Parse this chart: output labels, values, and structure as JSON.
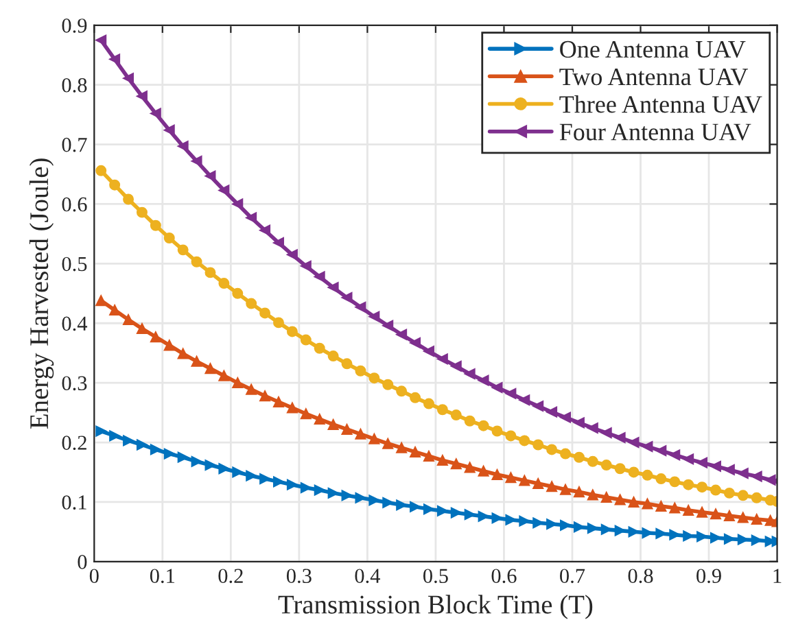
{
  "chart_data": {
    "type": "line",
    "xlabel": "Transmission Block Time (T)",
    "ylabel": "Energy Harvested (Joule)",
    "x": [
      0.01,
      0.03,
      0.05,
      0.07,
      0.09,
      0.11,
      0.13,
      0.15,
      0.17,
      0.19,
      0.21,
      0.23,
      0.25,
      0.27,
      0.29,
      0.31,
      0.33,
      0.35,
      0.37,
      0.39,
      0.41,
      0.43,
      0.45,
      0.47,
      0.49,
      0.51,
      0.53,
      0.55,
      0.57,
      0.59,
      0.61,
      0.63,
      0.65,
      0.67,
      0.69,
      0.71,
      0.73,
      0.75,
      0.77,
      0.79,
      0.81,
      0.83,
      0.85,
      0.87,
      0.89,
      0.91,
      0.93,
      0.95,
      0.97,
      0.99,
      1.0
    ],
    "series": [
      {
        "name": "One Antenna UAV",
        "color": "#0072bd",
        "marker": "triangle-right",
        "values": [
          0.219,
          0.211,
          0.203,
          0.196,
          0.188,
          0.181,
          0.175,
          0.168,
          0.162,
          0.156,
          0.15,
          0.144,
          0.139,
          0.134,
          0.129,
          0.124,
          0.12,
          0.115,
          0.111,
          0.107,
          0.103,
          0.099,
          0.095,
          0.092,
          0.088,
          0.085,
          0.082,
          0.079,
          0.076,
          0.073,
          0.07,
          0.068,
          0.065,
          0.063,
          0.061,
          0.058,
          0.056,
          0.054,
          0.052,
          0.05,
          0.048,
          0.047,
          0.045,
          0.043,
          0.042,
          0.04,
          0.038,
          0.037,
          0.036,
          0.034,
          0.034
        ]
      },
      {
        "name": "Two Antenna UAV",
        "color": "#d95319",
        "marker": "triangle",
        "values": [
          0.438,
          0.422,
          0.406,
          0.391,
          0.377,
          0.363,
          0.349,
          0.336,
          0.324,
          0.312,
          0.3,
          0.289,
          0.278,
          0.268,
          0.258,
          0.248,
          0.239,
          0.23,
          0.222,
          0.214,
          0.206,
          0.198,
          0.191,
          0.184,
          0.177,
          0.17,
          0.164,
          0.158,
          0.152,
          0.146,
          0.141,
          0.136,
          0.131,
          0.126,
          0.121,
          0.117,
          0.112,
          0.108,
          0.104,
          0.1,
          0.097,
          0.093,
          0.09,
          0.086,
          0.083,
          0.08,
          0.077,
          0.074,
          0.071,
          0.069,
          0.067
        ]
      },
      {
        "name": "Three Antenna UAV",
        "color": "#edb120",
        "marker": "circle",
        "values": [
          0.656,
          0.632,
          0.608,
          0.586,
          0.564,
          0.543,
          0.523,
          0.503,
          0.485,
          0.467,
          0.45,
          0.433,
          0.417,
          0.401,
          0.386,
          0.372,
          0.358,
          0.345,
          0.332,
          0.32,
          0.308,
          0.297,
          0.286,
          0.275,
          0.265,
          0.255,
          0.246,
          0.236,
          0.228,
          0.219,
          0.211,
          0.203,
          0.196,
          0.188,
          0.181,
          0.175,
          0.168,
          0.162,
          0.156,
          0.15,
          0.145,
          0.139,
          0.134,
          0.129,
          0.125,
          0.12,
          0.115,
          0.111,
          0.107,
          0.103,
          0.101
        ]
      },
      {
        "name": "Four Antenna UAV",
        "color": "#7e2f8e",
        "marker": "triangle-left",
        "values": [
          0.875,
          0.843,
          0.811,
          0.781,
          0.752,
          0.724,
          0.697,
          0.672,
          0.647,
          0.623,
          0.6,
          0.577,
          0.556,
          0.535,
          0.515,
          0.496,
          0.478,
          0.46,
          0.443,
          0.427,
          0.411,
          0.396,
          0.381,
          0.367,
          0.353,
          0.34,
          0.328,
          0.315,
          0.304,
          0.292,
          0.282,
          0.271,
          0.261,
          0.251,
          0.242,
          0.233,
          0.224,
          0.216,
          0.208,
          0.2,
          0.193,
          0.186,
          0.179,
          0.172,
          0.166,
          0.16,
          0.154,
          0.148,
          0.143,
          0.137,
          0.135
        ]
      }
    ],
    "xlim": [
      0,
      1
    ],
    "ylim": [
      0,
      0.9
    ],
    "xticks": [
      0,
      0.1,
      0.2,
      0.3,
      0.4,
      0.5,
      0.6,
      0.7,
      0.8,
      0.9,
      1
    ],
    "yticks": [
      0,
      0.1,
      0.2,
      0.3,
      0.4,
      0.5,
      0.6,
      0.7,
      0.8,
      0.9
    ],
    "grid": true,
    "legend": "top right",
    "line_style": "solid"
  }
}
